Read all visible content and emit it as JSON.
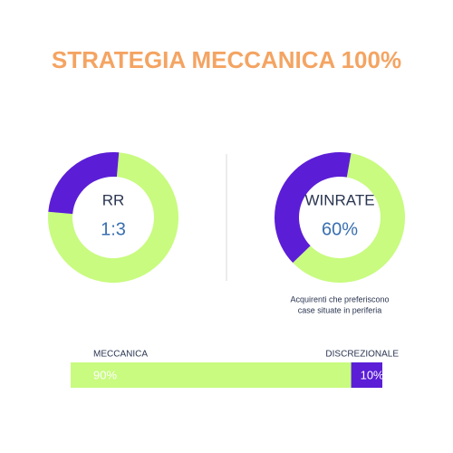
{
  "title": "STRATEGIA MECCANICA 100%",
  "chart_data": [
    {
      "type": "donut",
      "label": "RR",
      "center_text": "1:3",
      "values": [
        75,
        25
      ],
      "colors": [
        "#c8fb7f",
        "#5b1ed6"
      ]
    },
    {
      "type": "donut",
      "label": "WINRATE",
      "center_text": "60%",
      "values": [
        60,
        40
      ],
      "colors": [
        "#c8fb7f",
        "#5b1ed6"
      ],
      "caption": [
        "Acquirenti che preferiscono",
        "case situate in periferia"
      ]
    },
    {
      "type": "stacked-bar",
      "xlim": [
        0,
        100
      ],
      "series": [
        {
          "name": "MECCANICA",
          "color": "#c8fb7f",
          "values": [
            90
          ],
          "value_labels": [
            "90%"
          ]
        },
        {
          "name": "DISCREZIONALE",
          "color": "#5b1ed6",
          "values": [
            10
          ],
          "value_labels": [
            "10%"
          ]
        }
      ]
    }
  ]
}
